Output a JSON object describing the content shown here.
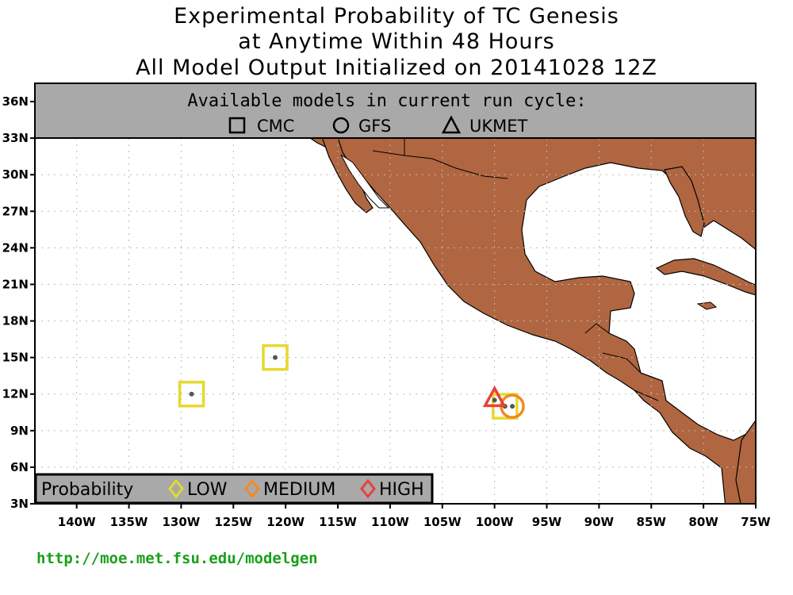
{
  "titles": {
    "line1": "Experimental Probability of TC Genesis",
    "line2": "at Anytime Within 48 Hours",
    "line3": "All Model Output Initialized on 20141028 12Z"
  },
  "models_box": {
    "heading": "Available models in current run cycle:",
    "models": [
      {
        "label": "CMC",
        "icon": "square-icon"
      },
      {
        "label": "GFS",
        "icon": "circle-icon"
      },
      {
        "label": "UKMET",
        "icon": "triangle-icon"
      }
    ]
  },
  "legend": {
    "heading": "Probability",
    "levels": [
      {
        "label": "LOW",
        "color": "#e6d92e"
      },
      {
        "label": "MEDIUM",
        "color": "#f08a24"
      },
      {
        "label": "HIGH",
        "color": "#e8413b"
      }
    ]
  },
  "axes": {
    "lon_range": [
      -144,
      -75
    ],
    "lat_range": [
      3,
      37.5
    ],
    "lon_ticks": [
      {
        "value": -140,
        "label": "140W"
      },
      {
        "value": -135,
        "label": "135W"
      },
      {
        "value": -130,
        "label": "130W"
      },
      {
        "value": -125,
        "label": "125W"
      },
      {
        "value": -120,
        "label": "120W"
      },
      {
        "value": -115,
        "label": "115W"
      },
      {
        "value": -110,
        "label": "110W"
      },
      {
        "value": -105,
        "label": "105W"
      },
      {
        "value": -100,
        "label": "100W"
      },
      {
        "value": -95,
        "label": "95W"
      },
      {
        "value": -90,
        "label": "90W"
      },
      {
        "value": -85,
        "label": "85W"
      },
      {
        "value": -80,
        "label": "80W"
      },
      {
        "value": -75,
        "label": "75W"
      }
    ],
    "lat_ticks": [
      {
        "value": 3,
        "label": "3N"
      },
      {
        "value": 6,
        "label": "6N"
      },
      {
        "value": 9,
        "label": "9N"
      },
      {
        "value": 12,
        "label": "12N"
      },
      {
        "value": 15,
        "label": "15N"
      },
      {
        "value": 18,
        "label": "18N"
      },
      {
        "value": 21,
        "label": "21N"
      },
      {
        "value": 24,
        "label": "24N"
      },
      {
        "value": 27,
        "label": "27N"
      },
      {
        "value": 30,
        "label": "30N"
      },
      {
        "value": 33,
        "label": "33N"
      },
      {
        "value": 36,
        "label": "36N"
      }
    ]
  },
  "colors": {
    "land": "#b06640",
    "low": "#e6d92e",
    "medium": "#f08a24",
    "high": "#e8413b",
    "models_box_fill": "#a9a9a9",
    "url": "#1a9f1a"
  },
  "markers": [
    {
      "model": "CMC",
      "shape": "square",
      "probability": "LOW",
      "lon": -129,
      "lat": 12
    },
    {
      "model": "CMC",
      "shape": "square",
      "probability": "LOW",
      "lon": -121,
      "lat": 15
    },
    {
      "model": "CMC",
      "shape": "square",
      "probability": "LOW",
      "lon": -99,
      "lat": 11
    },
    {
      "model": "GFS",
      "shape": "circle",
      "probability": "MEDIUM",
      "lon": -98.3,
      "lat": 11
    },
    {
      "model": "UKMET",
      "shape": "triangle",
      "probability": "HIGH",
      "lon": -100,
      "lat": 11.5
    }
  ],
  "footer": {
    "url": "http://moe.met.fsu.edu/modelgen"
  }
}
